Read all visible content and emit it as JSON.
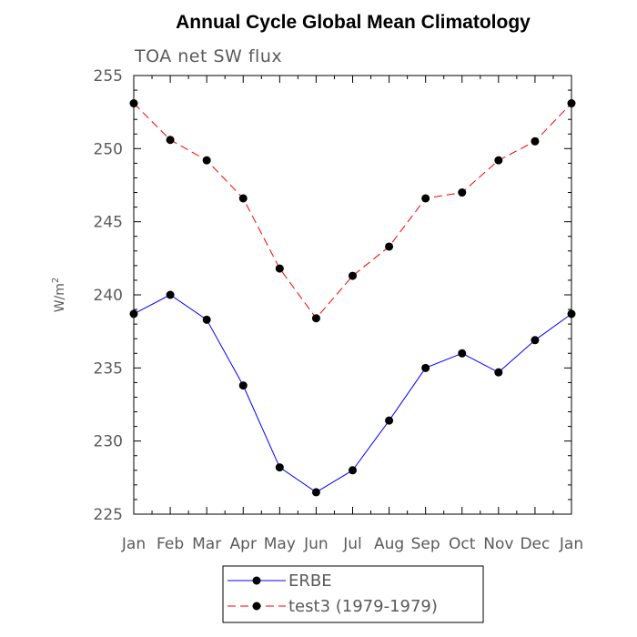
{
  "chart_data": {
    "type": "line",
    "title": "Annual Cycle Global Mean Climatology",
    "subtitle": "TOA net SW flux",
    "ylabel": "W/m",
    "ylabel_sup": "2",
    "xlabel": "",
    "categories": [
      "Jan",
      "Feb",
      "Mar",
      "Apr",
      "May",
      "Jun",
      "Jul",
      "Aug",
      "Sep",
      "Oct",
      "Nov",
      "Dec",
      "Jan"
    ],
    "ylim": [
      225,
      255
    ],
    "yticks": [
      225,
      230,
      235,
      240,
      245,
      250,
      255
    ],
    "grid": false,
    "legend_placement": "bottom-center",
    "series": [
      {
        "name": "ERBE",
        "color": "#0000ff",
        "dash": "solid",
        "marker": "filled-circle",
        "values": [
          238.7,
          240.0,
          238.3,
          233.8,
          228.2,
          226.5,
          228.0,
          231.4,
          235.0,
          236.0,
          234.7,
          236.9,
          238.7
        ]
      },
      {
        "name": "test3 (1979-1979)",
        "color": "#ff0000",
        "dash": "dashed",
        "marker": "filled-circle",
        "values": [
          253.1,
          250.6,
          249.2,
          246.6,
          241.8,
          238.4,
          241.3,
          243.3,
          246.6,
          247.0,
          249.2,
          250.5,
          253.1
        ]
      }
    ]
  }
}
